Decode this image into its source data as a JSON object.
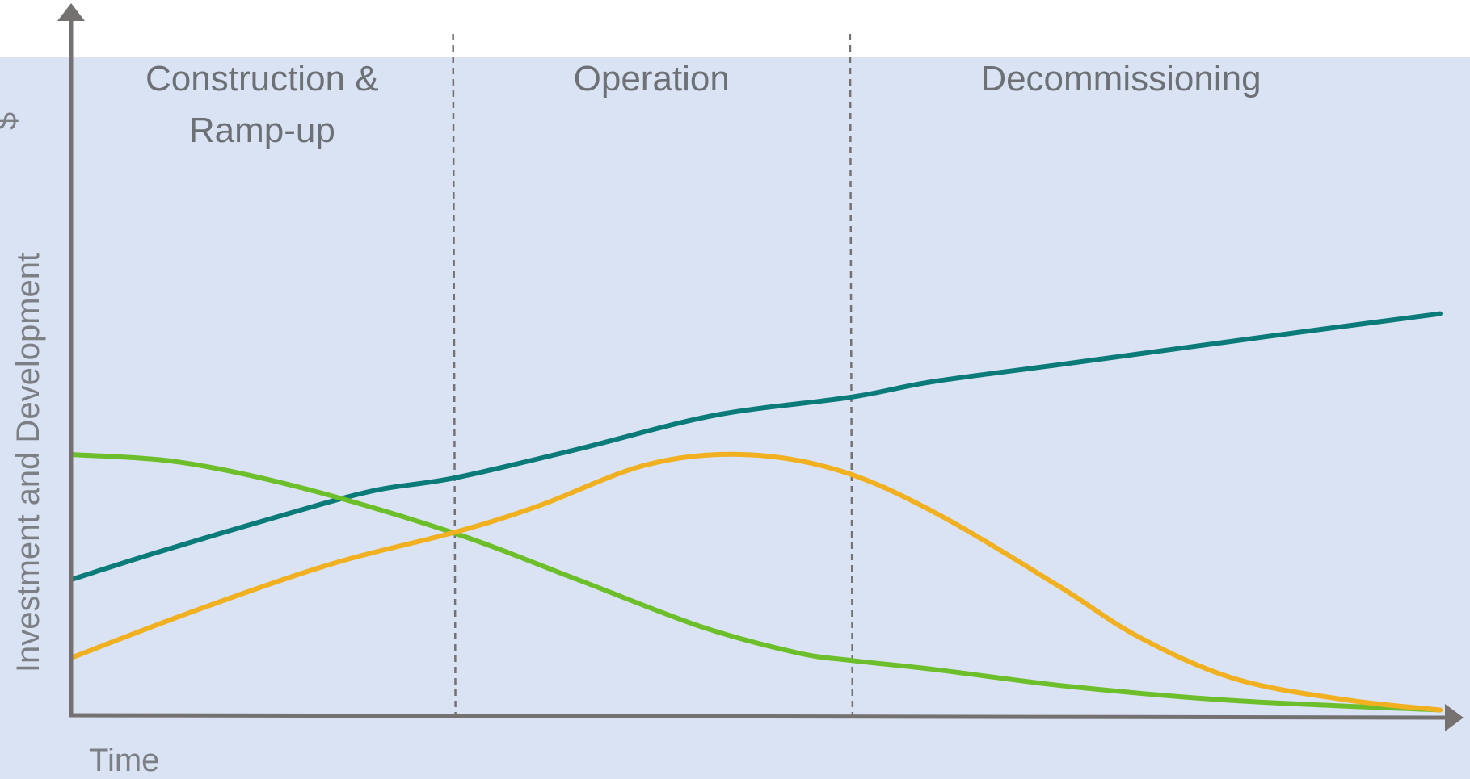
{
  "chart_data": {
    "type": "line",
    "title": "",
    "xlabel": "Time",
    "ylabel": "Investment and Development",
    "yunit": "$",
    "xlim": [
      0,
      100
    ],
    "ylim": [
      0,
      100
    ],
    "grid": false,
    "legend": "none",
    "phases": [
      {
        "lines": [
          "Construction &",
          "Ramp-up"
        ],
        "start": 0,
        "end": 27.9
      },
      {
        "lines": [
          "Operation"
        ],
        "start": 27.9,
        "end": 56.9
      },
      {
        "lines": [
          "Decommissioning"
        ],
        "start": 56.9,
        "end": 100
      }
    ],
    "series": [
      {
        "color": "#0a7b78",
        "points": [
          [
            0,
            26
          ],
          [
            6,
            31
          ],
          [
            15,
            38
          ],
          [
            22,
            43
          ],
          [
            28,
            45.5
          ],
          [
            37,
            51
          ],
          [
            47,
            57.5
          ],
          [
            57,
            61
          ],
          [
            63,
            64
          ],
          [
            73,
            67.5
          ],
          [
            87,
            72.5
          ],
          [
            100,
            77
          ]
        ]
      },
      {
        "color": "#6cbf2a",
        "points": [
          [
            0,
            50
          ],
          [
            8,
            48.5
          ],
          [
            17,
            43.5
          ],
          [
            27.9,
            35
          ],
          [
            37,
            26
          ],
          [
            46,
            17
          ],
          [
            53,
            12
          ],
          [
            57,
            10.5
          ],
          [
            63,
            8.8
          ],
          [
            73,
            5.5
          ],
          [
            85,
            2.8
          ],
          [
            100,
            1
          ]
        ]
      },
      {
        "color": "#f0b020",
        "points": [
          [
            0,
            11
          ],
          [
            9,
            20
          ],
          [
            19,
            29
          ],
          [
            27.9,
            35
          ],
          [
            34,
            40
          ],
          [
            42,
            48
          ],
          [
            49,
            50
          ],
          [
            56,
            47
          ],
          [
            63,
            39
          ],
          [
            72,
            25
          ],
          [
            78,
            15
          ],
          [
            85,
            7
          ],
          [
            93,
            3
          ],
          [
            100,
            1
          ]
        ]
      }
    ]
  },
  "colors": {
    "panel_background": "#dae3f3",
    "axis": "#767171",
    "divider": "#767171"
  }
}
